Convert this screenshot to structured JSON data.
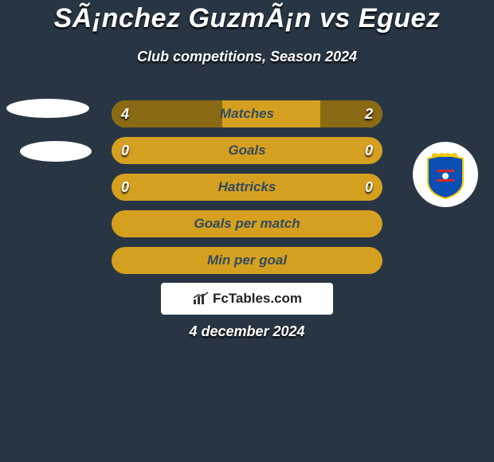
{
  "title": "SÃ¡nchez GuzmÃ¡n vs Eguez",
  "subtitle": "Club competitions, Season 2024",
  "date": "4 december 2024",
  "logo_text": "FcTables.com",
  "colors": {
    "background": "#283644",
    "bar_track": "#d5a020",
    "bar_fill": "#8b6a14",
    "bar_label": "#324a5e",
    "logo_bg": "#ffffff"
  },
  "players": {
    "left": {
      "name": "Sánchez Guzmán"
    },
    "right": {
      "name": "Eguez",
      "club_colors": [
        "#0a4fb3",
        "#d62728",
        "#f2c600"
      ]
    }
  },
  "bars": [
    {
      "label": "Matches",
      "left": "4",
      "right": "2",
      "left_pct": 41,
      "right_pct": 23
    },
    {
      "label": "Goals",
      "left": "0",
      "right": "0",
      "left_pct": 0,
      "right_pct": 0
    },
    {
      "label": "Hattricks",
      "left": "0",
      "right": "0",
      "left_pct": 0,
      "right_pct": 0
    },
    {
      "label": "Goals per match",
      "left": "",
      "right": "",
      "left_pct": 0,
      "right_pct": 0
    },
    {
      "label": "Min per goal",
      "left": "",
      "right": "",
      "left_pct": 0,
      "right_pct": 0
    }
  ]
}
